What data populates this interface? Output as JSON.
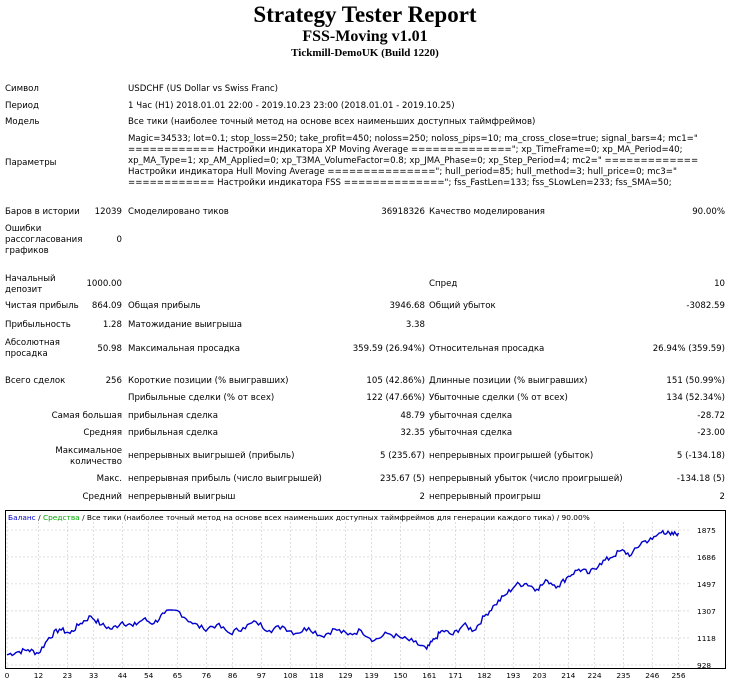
{
  "header": {
    "title": "Strategy Tester Report",
    "subtitle": "FSS-Moving v1.01",
    "server": "Tickmill-DemoUK (Build 1220)"
  },
  "info": {
    "symbol_label": "Символ",
    "symbol_value": "USDCHF (US Dollar vs Swiss Franc)",
    "period_label": "Период",
    "period_value": "1 Час (H1) 2018.01.01 22:00 - 2019.10.23 23:00 (2018.01.01 - 2019.10.25)",
    "model_label": "Модель",
    "model_value": "Все тики (наиболее точный метод на основе всех наименьших доступных таймфреймов)",
    "params_label": "Параметры",
    "params_lines": [
      "Magic=34533; lot=0.1; stop_loss=250; take_profit=450; noloss=250; noloss_pips=10; ma_cross_close=true; signal_bars=4; mc1=\"",
      "============ Настройки индикатора XP Moving Average ==============\"; xp_TimeFrame=0; xp_MA_Period=40;",
      "xp_MA_Type=1; xp_AM_Applied=0; xp_T3MA_VolumeFactor=0.8; xp_JMA_Phase=0; xp_Step_Period=4; mc2=\" =============",
      "Настройки индикатора Hull Moving Average ===============\"; hull_period=85; hull_method=3; hull_price=0; mc3=\"",
      "============ Настройки индикатора FSS ==============\"; fss_FastLen=133; fss_SLowLen=233; fss_SMA=50;"
    ]
  },
  "stats": {
    "bars_label": "Баров в истории",
    "bars_value": "12039",
    "ticks_label": "Смоделировано тиков",
    "ticks_value": "36918326",
    "quality_label": "Качество моделирования",
    "quality_value": "90.00%",
    "errors_label_1": "Ошибки",
    "errors_label_2": "рассогласования",
    "errors_label_3": "графиков",
    "errors_value": "0",
    "deposit_label_1": "Начальный",
    "deposit_label_2": "депозит",
    "deposit_value": "1000.00",
    "spread_label": "Спред",
    "spread_value": "10",
    "net_label": "Чистая прибыль",
    "net_value": "864.09",
    "gross_profit_label": "Общая прибыль",
    "gross_profit_value": "3946.68",
    "gross_loss_label": "Общий убыток",
    "gross_loss_value": "-3082.59",
    "pf_label": "Прибыльность",
    "pf_value": "1.28",
    "expected_label": "Матожидание выигрыша",
    "expected_value": "3.38",
    "abs_dd_label_1": "Абсолютная",
    "abs_dd_label_2": "просадка",
    "abs_dd_value": "50.98",
    "max_dd_label": "Максимальная просадка",
    "max_dd_value": "359.59 (26.94%)",
    "rel_dd_label": "Относительная просадка",
    "rel_dd_value": "26.94% (359.59)",
    "trades_label": "Всего сделок",
    "trades_value": "256",
    "short_label": "Короткие позиции (% выигравших)",
    "short_value": "105 (42.86%)",
    "long_label": "Длинные позиции (% выигравших)",
    "long_value": "151 (50.99%)",
    "profit_trades_label": "Прибыльные сделки (% от всех)",
    "profit_trades_value": "122 (47.66%)",
    "loss_trades_label": "Убыточные сделки (% от всех)",
    "loss_trades_value": "134 (52.34%)",
    "largest_label": "Самая большая",
    "largest_profit_label": "прибыльная сделка",
    "largest_profit_value": "48.79",
    "largest_loss_label": "убыточная сделка",
    "largest_loss_value": "-28.72",
    "average_label": "Средняя",
    "average_profit_label": "прибыльная сделка",
    "average_profit_value": "32.35",
    "average_loss_label": "убыточная сделка",
    "average_loss_value": "-23.00",
    "maxcount_label_1": "Максимальное",
    "maxcount_label_2": "количество",
    "cons_wins_label": "непрерывных выигрышей (прибыль)",
    "cons_wins_value": "5 (235.67)",
    "cons_losses_label": "непрерывных проигрышей (убыток)",
    "cons_losses_value": "5 (-134.18)",
    "max_label": "Макс.",
    "cons_profit_label": "непрерывная прибыль (число выигрышей)",
    "cons_profit_value": "235.67 (5)",
    "cons_loss_label": "непрерывный убыток (число проигрышей)",
    "cons_loss_value": "-134.18 (5)",
    "avg_label": "Средний",
    "avg_win_label": "непрерывный выигрыш",
    "avg_win_value": "2",
    "avg_loss_label": "непрерывный проигрыш",
    "avg_loss_value": "2"
  },
  "chart_legend": {
    "balance": "Баланс",
    "sep1": " / ",
    "equity": "Средства",
    "rest": " / Все тики (наиболее точный метод на основе всех наименьших доступных таймфреймов для генерации каждого тика) / 90.00%"
  },
  "colors": {
    "balance": "#0000cc",
    "equity": "#00aa00",
    "grid": "#c8c8c8",
    "frame": "#000000"
  },
  "chart_data": {
    "type": "line",
    "title": "",
    "xlabel": "",
    "ylabel": "",
    "grid": true,
    "xlim": [
      0,
      260
    ],
    "ylim": [
      928,
      1875
    ],
    "x_ticks": [
      0,
      12,
      23,
      33,
      44,
      54,
      65,
      76,
      86,
      97,
      108,
      118,
      129,
      139,
      150,
      161,
      171,
      182,
      193,
      203,
      214,
      224,
      235,
      246,
      256
    ],
    "y_ticks": [
      928,
      1118,
      1307,
      1497,
      1686,
      1875
    ],
    "series": [
      {
        "name": "Баланс",
        "x": [
          0,
          4,
          8,
          12,
          16,
          20,
          24,
          28,
          32,
          36,
          40,
          44,
          48,
          52,
          56,
          60,
          65,
          70,
          75,
          80,
          85,
          90,
          95,
          100,
          105,
          110,
          115,
          120,
          125,
          130,
          135,
          140,
          145,
          150,
          155,
          160,
          163,
          166,
          170,
          174,
          178,
          182,
          186,
          190,
          194,
          198,
          202,
          206,
          210,
          214,
          218,
          222,
          226,
          230,
          234,
          238,
          242,
          246,
          250,
          253,
          256
        ],
        "values": [
          1000,
          1020,
          1035,
          1010,
          1120,
          1180,
          1150,
          1220,
          1270,
          1210,
          1180,
          1230,
          1200,
          1250,
          1220,
          1290,
          1310,
          1230,
          1180,
          1210,
          1150,
          1190,
          1230,
          1170,
          1200,
          1150,
          1190,
          1130,
          1180,
          1140,
          1170,
          1100,
          1150,
          1120,
          1090,
          1040,
          1110,
          1170,
          1140,
          1210,
          1170,
          1270,
          1350,
          1420,
          1490,
          1500,
          1460,
          1520,
          1480,
          1550,
          1600,
          1570,
          1640,
          1680,
          1730,
          1700,
          1790,
          1810,
          1870,
          1840,
          1855
        ]
      }
    ]
  }
}
